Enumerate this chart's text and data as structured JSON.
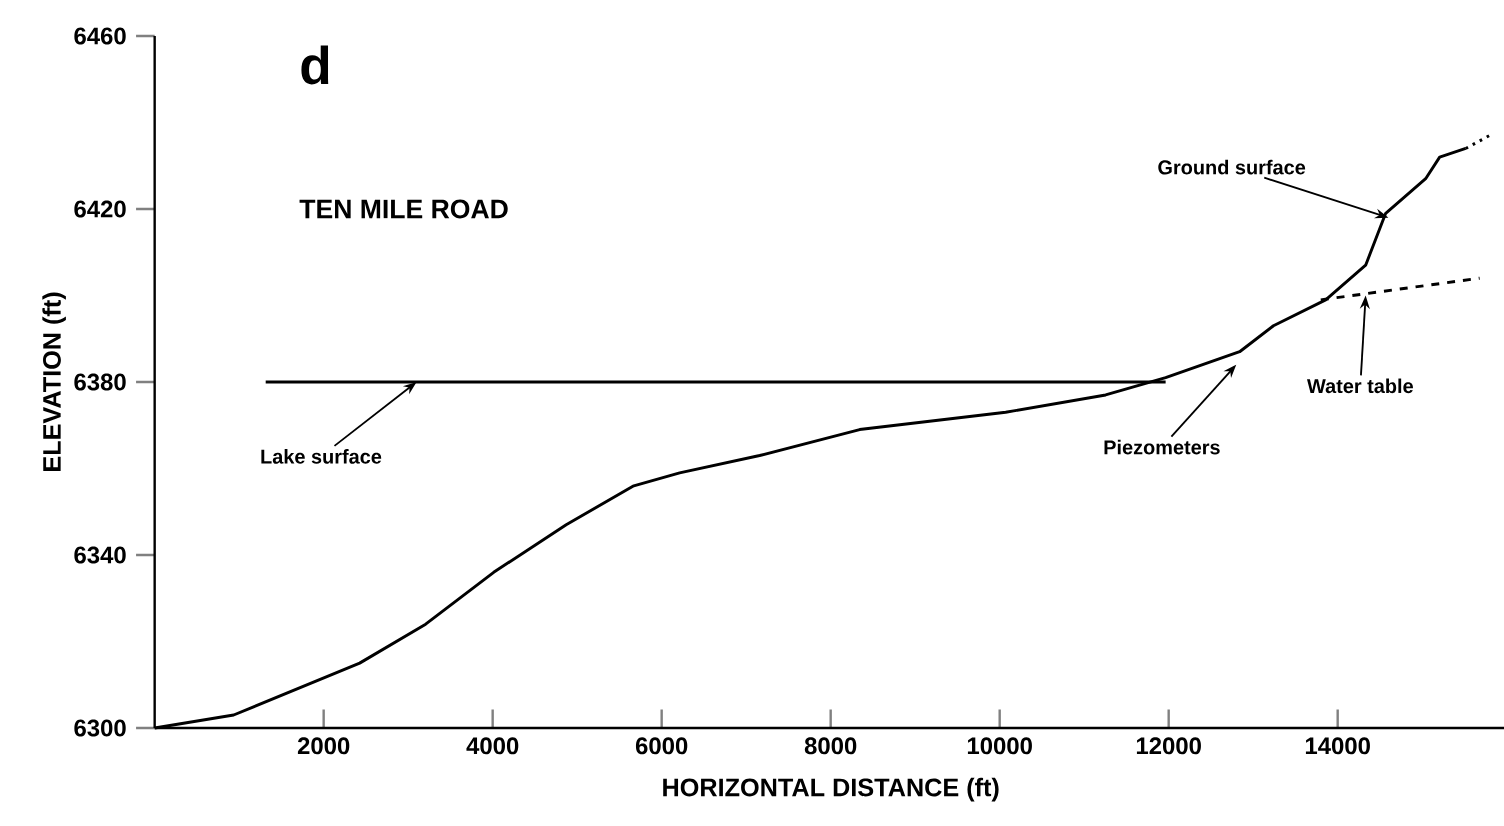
{
  "chart_data": {
    "type": "line",
    "title": "TEN MILE ROAD",
    "xlabel": "HORIZONTAL DISTANCE (ft)",
    "ylabel": "ELEVATION (ft)",
    "xlim": [
      0,
      16000
    ],
    "xticks": [
      2000,
      4000,
      6000,
      8000,
      10000,
      12000,
      14000
    ],
    "ylim": [
      6300,
      6460
    ],
    "yticks": [
      6300,
      6340,
      6380,
      6420,
      6460
    ],
    "series": [
      {
        "color": "#000000",
        "x": [
          0,
          935,
          2426,
          3207,
          4012,
          4870,
          5670,
          6213,
          7160,
          8343,
          10071,
          11254,
          11964,
          12840,
          13240,
          13858,
          14331,
          14568,
          15041,
          15207,
          15515
        ],
        "values": [
          6300,
          6303,
          6315,
          6324,
          6336,
          6347,
          6356,
          6359,
          6363,
          6369,
          6373,
          6377,
          6381,
          6387,
          6393,
          6399,
          6407,
          6419,
          6427,
          6432,
          6434
        ]
      },
      {
        "color": "#000000",
        "line_style": "dotted",
        "x": [
          15515,
          15799
        ],
        "values": [
          6434,
          6437
        ]
      },
      {
        "color": "#000000",
        "line_style": "dashed",
        "x": [
          13800,
          15680
        ],
        "values": [
          6399,
          6404
        ]
      },
      {
        "color": "#000000",
        "x": [
          1314,
          11964
        ],
        "values": [
          6380,
          6380
        ]
      }
    ],
    "annotations": [
      "d",
      {
        "text": "Lake surface",
        "x": 3100,
        "y": 6380
      },
      {
        "text": "Piezometers",
        "x": 12800,
        "y": 6384
      },
      {
        "text": "Water table",
        "x": 14331,
        "y": 6400
      },
      {
        "text": "Ground surface",
        "x": 14600,
        "y": 6418
      }
    ],
    "grid": false,
    "marker": "none"
  }
}
